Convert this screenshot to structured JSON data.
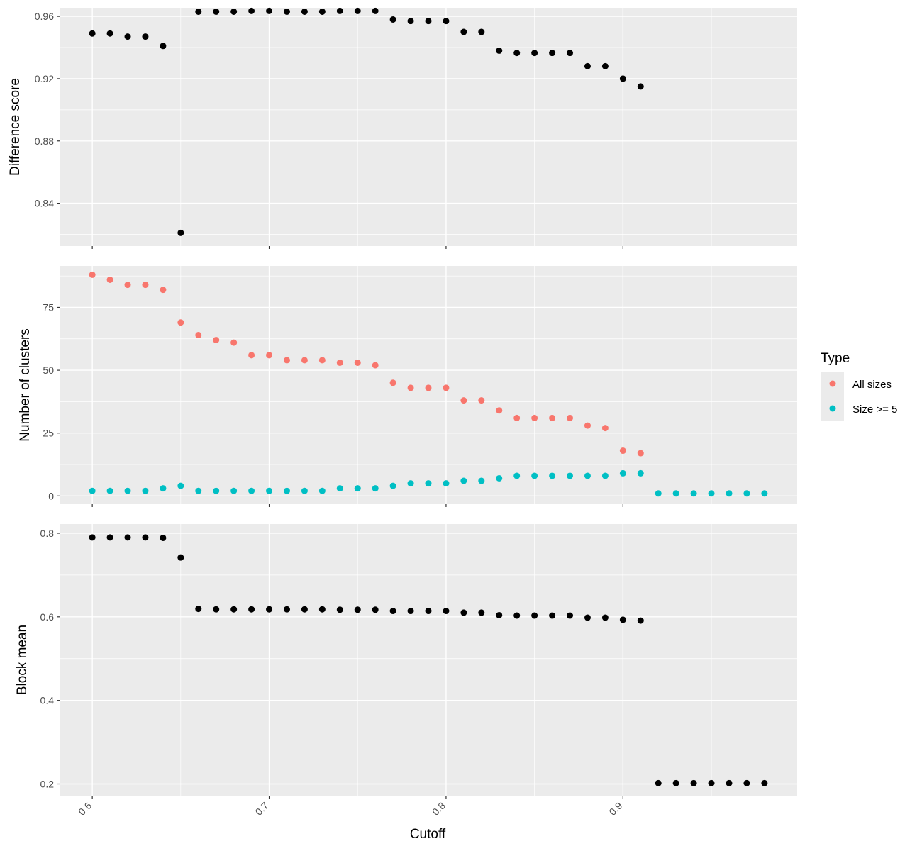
{
  "chart_data": [
    {
      "type": "scatter",
      "ylabel": "Difference score",
      "ylim": [
        0.8125,
        0.9655
      ],
      "y_major_ticks": [
        0.84,
        0.88,
        0.92,
        0.96
      ],
      "y_tick_labels": [
        "0.84",
        "0.88",
        "0.92",
        "0.96"
      ],
      "y_minor_ticks": [
        0.82,
        0.86,
        0.9,
        0.94
      ],
      "series": [
        {
          "x": [
            0.6,
            0.61,
            0.62,
            0.63,
            0.64,
            0.65,
            0.66,
            0.67,
            0.68,
            0.69,
            0.7,
            0.71,
            0.72,
            0.73,
            0.74,
            0.75,
            0.76,
            0.77,
            0.78,
            0.79,
            0.8,
            0.81,
            0.82,
            0.83,
            0.84,
            0.85,
            0.86,
            0.87,
            0.88,
            0.89,
            0.9,
            0.91
          ],
          "values": [
            0.949,
            0.949,
            0.947,
            0.947,
            0.941,
            0.821,
            0.963,
            0.963,
            0.963,
            0.9635,
            0.9635,
            0.963,
            0.963,
            0.963,
            0.9635,
            0.9635,
            0.9635,
            0.958,
            0.957,
            0.957,
            0.957,
            0.95,
            0.95,
            0.938,
            0.9365,
            0.9365,
            0.9365,
            0.9365,
            0.928,
            0.928,
            0.92,
            0.915
          ]
        }
      ]
    },
    {
      "type": "scatter",
      "ylabel": "Number of clusters",
      "ylim": [
        -3.3,
        91.5
      ],
      "y_major_ticks": [
        0,
        25,
        50,
        75
      ],
      "y_tick_labels": [
        "0",
        "25",
        "50",
        "75"
      ],
      "y_minor_ticks": [
        12.5,
        37.5,
        62.5,
        87.5
      ],
      "series": [
        {
          "name": "All sizes",
          "x": [
            0.6,
            0.61,
            0.62,
            0.63,
            0.64,
            0.65,
            0.66,
            0.67,
            0.68,
            0.69,
            0.7,
            0.71,
            0.72,
            0.73,
            0.74,
            0.75,
            0.76,
            0.77,
            0.78,
            0.79,
            0.8,
            0.81,
            0.82,
            0.83,
            0.84,
            0.85,
            0.86,
            0.87,
            0.88,
            0.89,
            0.9,
            0.91
          ],
          "values": [
            88,
            86,
            84,
            84,
            82,
            69,
            64,
            62,
            61,
            56,
            56,
            54,
            54,
            54,
            53,
            53,
            52,
            45,
            43,
            43,
            43,
            38,
            38,
            34,
            31,
            31,
            31,
            31,
            28,
            27,
            18,
            17
          ]
        },
        {
          "name": "Size >= 5",
          "x": [
            0.6,
            0.61,
            0.62,
            0.63,
            0.64,
            0.65,
            0.66,
            0.67,
            0.68,
            0.69,
            0.7,
            0.71,
            0.72,
            0.73,
            0.74,
            0.75,
            0.76,
            0.77,
            0.78,
            0.79,
            0.8,
            0.81,
            0.82,
            0.83,
            0.84,
            0.85,
            0.86,
            0.87,
            0.88,
            0.89,
            0.9,
            0.91,
            0.92,
            0.93,
            0.94,
            0.95,
            0.96,
            0.97,
            0.98
          ],
          "values": [
            2,
            2,
            2,
            2,
            3,
            4,
            2,
            2,
            2,
            2,
            2,
            2,
            2,
            2,
            3,
            3,
            3,
            4,
            5,
            5,
            5,
            6,
            6,
            7,
            8,
            8,
            8,
            8,
            8,
            8,
            9,
            9,
            1,
            1,
            1,
            1,
            1,
            1,
            1
          ]
        }
      ]
    },
    {
      "type": "scatter",
      "ylabel": "Block mean",
      "xlabel": "Cutoff",
      "ylim": [
        0.172,
        0.822
      ],
      "y_major_ticks": [
        0.2,
        0.4,
        0.6,
        0.8
      ],
      "y_tick_labels": [
        "0.2",
        "0.4",
        "0.6",
        "0.8"
      ],
      "y_minor_ticks": [
        0.3,
        0.5,
        0.7
      ],
      "series": [
        {
          "x": [
            0.6,
            0.61,
            0.62,
            0.63,
            0.64,
            0.65,
            0.66,
            0.67,
            0.68,
            0.69,
            0.7,
            0.71,
            0.72,
            0.73,
            0.74,
            0.75,
            0.76,
            0.77,
            0.78,
            0.79,
            0.8,
            0.81,
            0.82,
            0.83,
            0.84,
            0.85,
            0.86,
            0.87,
            0.88,
            0.89,
            0.9,
            0.91,
            0.92,
            0.93,
            0.94,
            0.95,
            0.96,
            0.97,
            0.98
          ],
          "values": [
            0.79,
            0.79,
            0.79,
            0.79,
            0.789,
            0.742,
            0.619,
            0.618,
            0.618,
            0.618,
            0.618,
            0.618,
            0.618,
            0.618,
            0.617,
            0.617,
            0.617,
            0.614,
            0.614,
            0.614,
            0.614,
            0.61,
            0.61,
            0.604,
            0.603,
            0.603,
            0.603,
            0.603,
            0.598,
            0.598,
            0.593,
            0.591,
            0.202,
            0.202,
            0.202,
            0.202,
            0.202,
            0.202,
            0.202
          ]
        }
      ]
    }
  ],
  "x_axis": {
    "label": "Cutoff",
    "xlim": [
      0.5815,
      0.9985
    ],
    "major_ticks": [
      0.6,
      0.7,
      0.8,
      0.9
    ],
    "tick_labels": [
      "0.6",
      "0.7",
      "0.8",
      "0.9"
    ],
    "minor_ticks": [
      0.65,
      0.75,
      0.85,
      0.95
    ]
  },
  "legend": {
    "title": "Type",
    "position": "right",
    "entries": [
      {
        "label": "All sizes",
        "color": "#F8766D"
      },
      {
        "label": "Size >= 5",
        "color": "#00BFC4"
      }
    ]
  },
  "colors": {
    "default_point": "#000000",
    "panel_background": "#EBEBEB",
    "grid": "#FFFFFF"
  }
}
